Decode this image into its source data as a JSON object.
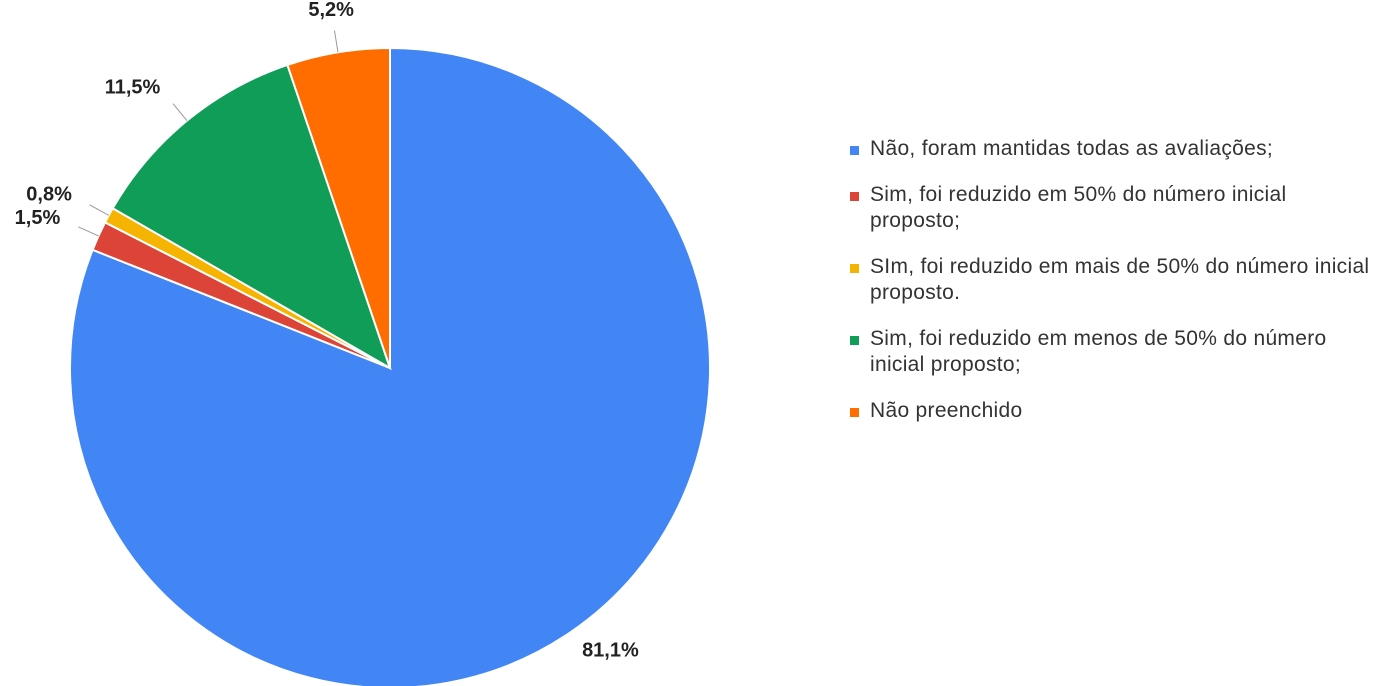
{
  "chart_data": {
    "type": "pie",
    "categories": [
      "Não, foram mantidas todas as avaliações;",
      "Sim, foi reduzido em 50% do número inicial proposto;",
      "SIm, foi reduzido em mais de 50% do número inicial proposto.",
      "Sim, foi reduzido em menos de 50% do número inicial proposto;",
      "Não preenchido"
    ],
    "values": [
      81.1,
      1.5,
      0.8,
      11.5,
      5.2
    ],
    "value_labels": [
      "81,1%",
      "1,5%",
      "0,8%",
      "11,5%",
      "5,2%"
    ],
    "colors": [
      "#4285f4",
      "#db4437",
      "#f4b400",
      "#0f9d58",
      "#ff6d01"
    ],
    "legend": "right"
  }
}
